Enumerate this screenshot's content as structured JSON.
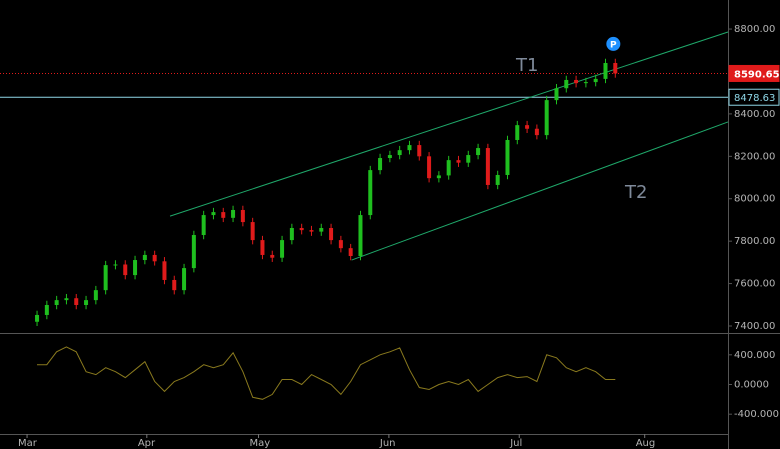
{
  "chart_data": [
    {
      "type": "candlestick",
      "up_color": "#1fbf1f",
      "down_color": "#e01b1b",
      "xlim": [
        -3.78,
        70.5
      ],
      "xticks": [
        {
          "value": -1.02,
          "label": "Mar"
        },
        {
          "value": 11.2,
          "label": "Apr"
        },
        {
          "value": 22.6,
          "label": "May"
        },
        {
          "value": 35.9,
          "label": "Jun"
        },
        {
          "value": 49.2,
          "label": "Jul"
        },
        {
          "value": 62.0,
          "label": "Aug"
        }
      ],
      "ylim": [
        7367,
        8937
      ],
      "yticks": [
        {
          "value": 7400,
          "label": "7400.00"
        },
        {
          "value": 7600,
          "label": "7600.00"
        },
        {
          "value": 7800,
          "label": "7800.00"
        },
        {
          "value": 8000,
          "label": "8000.00"
        },
        {
          "value": 8200,
          "label": "8200.00"
        },
        {
          "value": 8400,
          "label": "8400.00"
        },
        {
          "value": 8600,
          "label": "8600.00"
        },
        {
          "value": 8800,
          "label": "8800.00"
        }
      ],
      "open": [
        7420,
        7452,
        7499,
        7522,
        7531,
        7499,
        7522,
        7569,
        7687,
        7690,
        7640,
        7711,
        7735,
        7705,
        7617,
        7569,
        7673,
        7829,
        7923,
        7937,
        7910,
        7947,
        7890,
        7805,
        7735,
        7722,
        7805,
        7862,
        7852,
        7845,
        7862,
        7805,
        7767,
        7730,
        7923,
        8135,
        8192,
        8206,
        8229,
        8253,
        8200,
        8097,
        8110,
        8182,
        8170,
        8206,
        8239,
        8065,
        8112,
        8277,
        8347,
        8330,
        8300,
        8465,
        8521,
        8560,
        8545,
        8550,
        8565,
        8640
      ],
      "high": [
        7472,
        7519,
        7542,
        7551,
        7551,
        7542,
        7589,
        7707,
        7710,
        7710,
        7731,
        7755,
        7755,
        7725,
        7637,
        7693,
        7849,
        7943,
        7957,
        7957,
        7967,
        7967,
        7910,
        7825,
        7755,
        7825,
        7882,
        7882,
        7872,
        7882,
        7882,
        7825,
        7787,
        7943,
        8155,
        8212,
        8226,
        8249,
        8273,
        8273,
        8220,
        8130,
        8202,
        8202,
        8226,
        8259,
        8259,
        8132,
        8297,
        8367,
        8367,
        8350,
        8485,
        8541,
        8580,
        8580,
        8570,
        8585,
        8660,
        8660
      ],
      "low": [
        7400,
        7432,
        7479,
        7502,
        7479,
        7479,
        7502,
        7549,
        7667,
        7620,
        7620,
        7691,
        7685,
        7597,
        7549,
        7549,
        7653,
        7809,
        7903,
        7890,
        7890,
        7870,
        7785,
        7715,
        7702,
        7702,
        7785,
        7832,
        7825,
        7825,
        7785,
        7747,
        7710,
        7710,
        7903,
        8115,
        8172,
        8186,
        8209,
        8180,
        8077,
        8077,
        8090,
        8150,
        8150,
        8186,
        8045,
        8045,
        8092,
        8257,
        8310,
        8280,
        8280,
        8445,
        8501,
        8525,
        8525,
        8530,
        8545,
        8570.65
      ],
      "close": [
        7452,
        7499,
        7522,
        7531,
        7499,
        7522,
        7569,
        7687,
        7690,
        7640,
        7711,
        7735,
        7705,
        7617,
        7569,
        7673,
        7829,
        7923,
        7937,
        7910,
        7947,
        7890,
        7805,
        7735,
        7722,
        7805,
        7862,
        7852,
        7845,
        7862,
        7805,
        7767,
        7730,
        7923,
        8135,
        8192,
        8206,
        8229,
        8253,
        8200,
        8097,
        8110,
        8182,
        8170,
        8206,
        8239,
        8065,
        8112,
        8277,
        8347,
        8330,
        8300,
        8465,
        8521,
        8560,
        8545,
        8550,
        8565,
        8640,
        8590.65
      ],
      "levels": [
        {
          "value": 8590.65,
          "color": "#e01b1b",
          "style": "dotted"
        },
        {
          "value": 8478.63,
          "color": "#8fd8e8",
          "style": "solid"
        }
      ],
      "trendlines": [
        {
          "label": "T1",
          "color": "#1fa86a",
          "points": [
            [
              13.57,
              7918
            ],
            [
              70.5,
              8786
            ]
          ]
        },
        {
          "label": "T2",
          "color": "#1fa86a",
          "points": [
            [
              32.1,
              7711
            ],
            [
              70.5,
              8362
            ]
          ]
        }
      ],
      "marker": {
        "label": "P",
        "index": 58.8,
        "value": 8730,
        "color": "#1e90ff"
      }
    },
    {
      "type": "line",
      "color": "#8a7a1e",
      "ylim": [
        -640,
        667
      ],
      "yticks": [
        {
          "value": 400,
          "label": "400.000"
        },
        {
          "value": 0,
          "label": "0.0000"
        },
        {
          "value": -400,
          "label": "-400.000"
        }
      ],
      "values": [
        267,
        267,
        440,
        507,
        440,
        173,
        133,
        227,
        173,
        93,
        200,
        307,
        40,
        -93,
        40,
        93,
        173,
        267,
        227,
        267,
        427,
        173,
        -173,
        -200,
        -133,
        67,
        67,
        0,
        133,
        67,
        0,
        -133,
        40,
        267,
        333,
        400,
        440,
        493,
        200,
        -40,
        -67,
        0,
        40,
        0,
        67,
        -93,
        0,
        93,
        133,
        93,
        107,
        40,
        400,
        360,
        227,
        173,
        227,
        173,
        67,
        67
      ]
    }
  ]
}
